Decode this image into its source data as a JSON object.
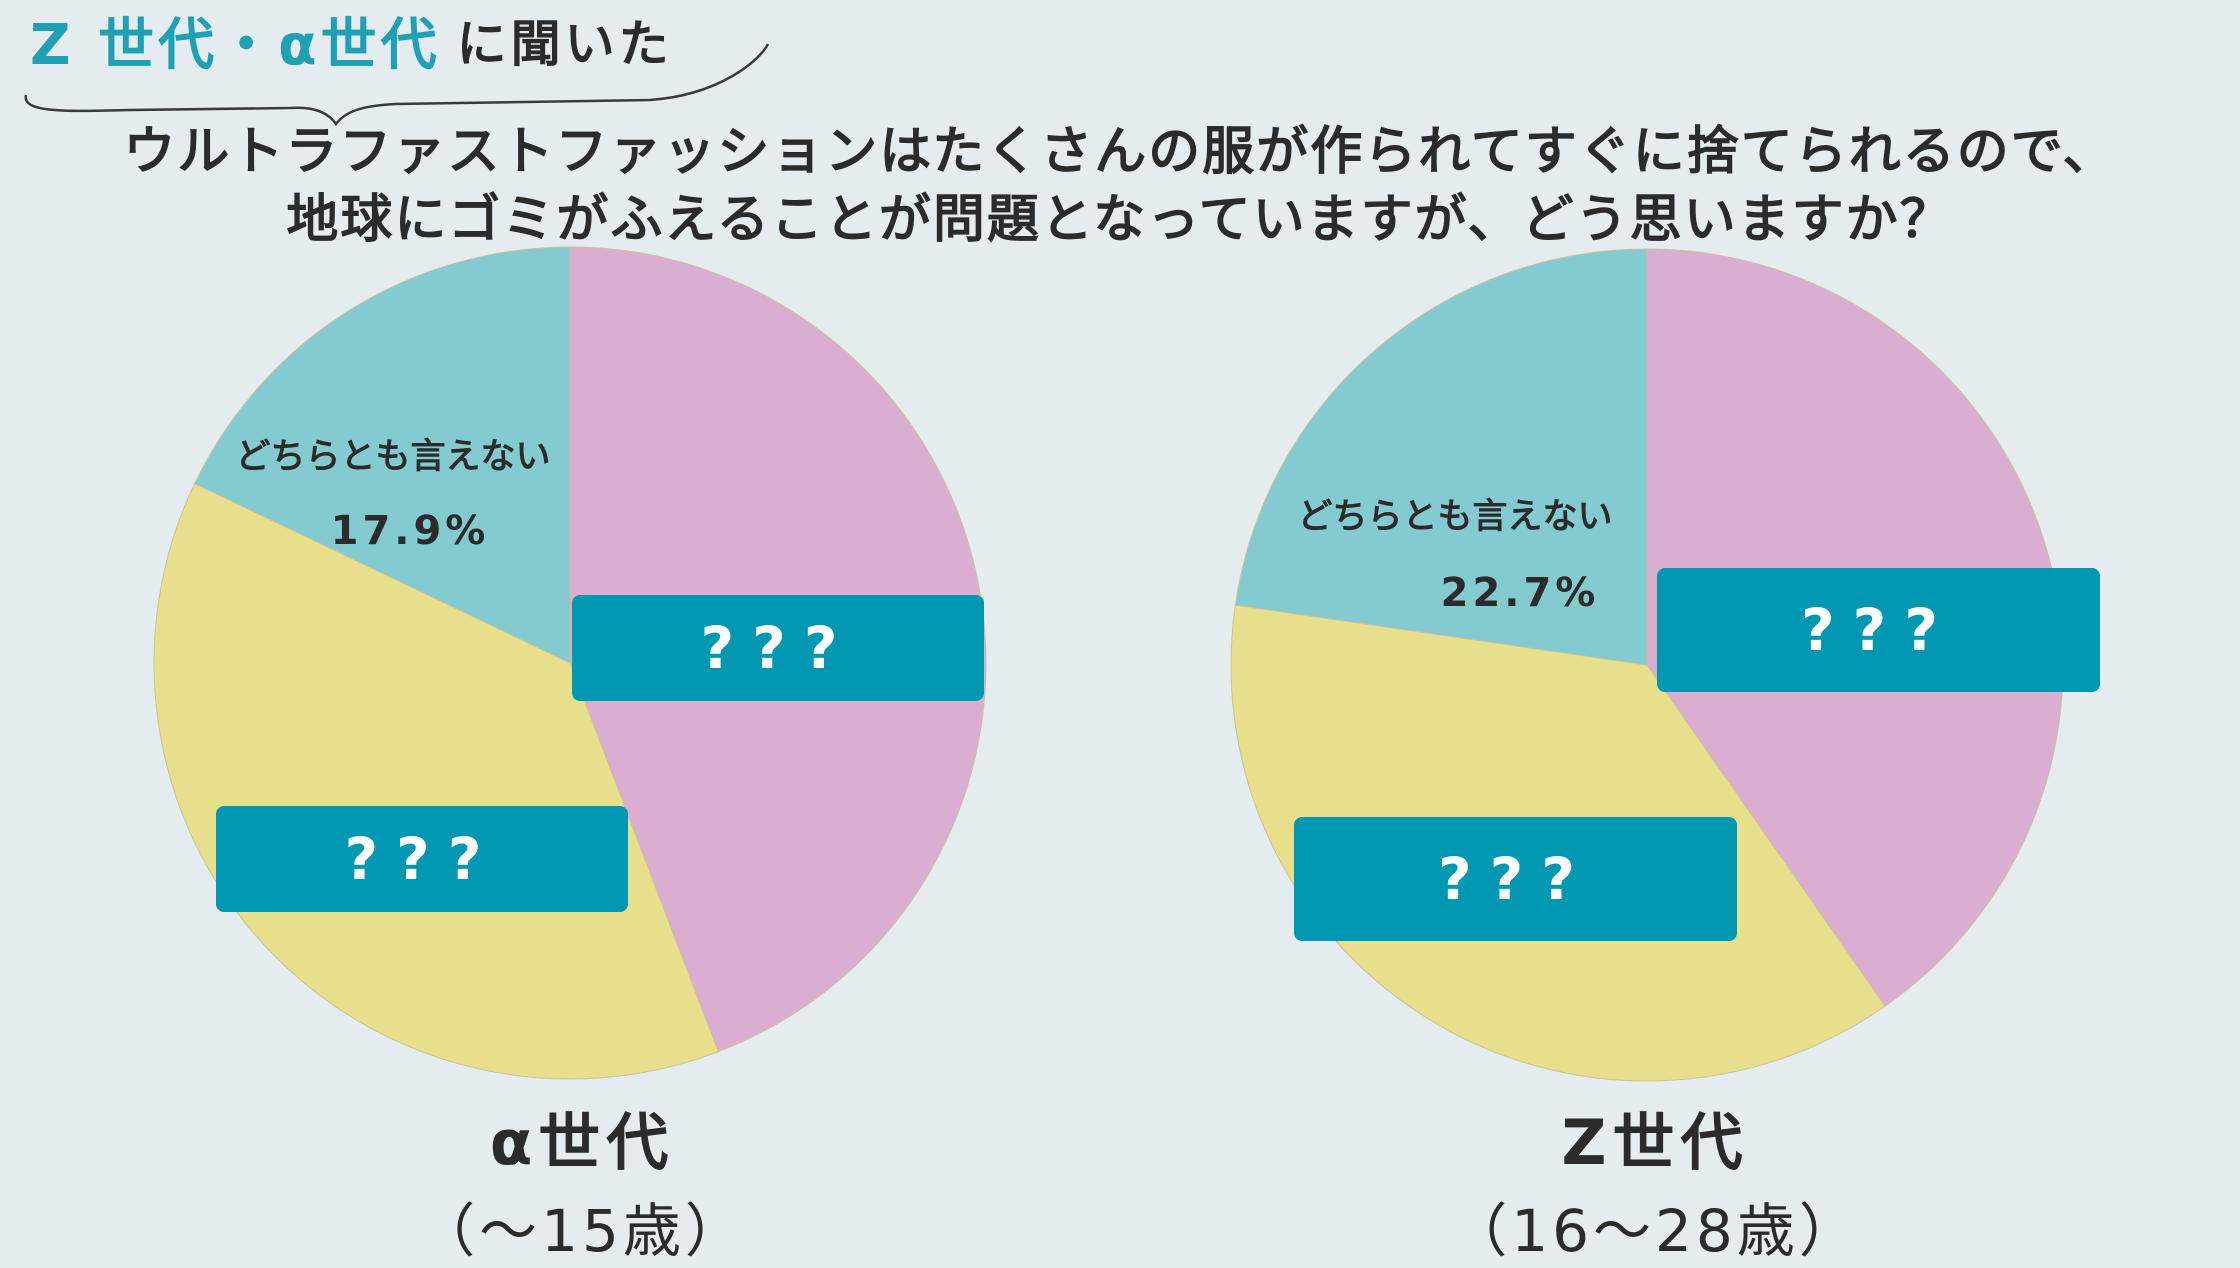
{
  "header": {
    "tag_accent": "Z 世代・α世代",
    "tag_rest": "に聞いた"
  },
  "question": {
    "line1": "ウルトラファストファッションはたくさんの服が作られてすぐに捨てられるので、",
    "line2": "地球にゴミがふえることが問題となっていますが、どう思いますか？"
  },
  "colors": {
    "background": "#e4ecef",
    "pink": "#d9aed0",
    "yellow": "#e8df8c",
    "teal_slice": "#83cbd0",
    "pill": "#0097b2",
    "accent_text": "#1fa0b4"
  },
  "chart_data": [
    {
      "type": "pie",
      "title": "α世代",
      "subtitle": "（〜15歳）",
      "slices": [
        {
          "label": "???",
          "value": 44.2,
          "color": "#d9aed0"
        },
        {
          "label": "???",
          "value": 37.9,
          "color": "#e8df8c"
        },
        {
          "label": "どちらとも言えない",
          "value": 17.9,
          "value_label": "17.9%",
          "color": "#83cbd0"
        }
      ]
    },
    {
      "type": "pie",
      "title": "Z世代",
      "subtitle": "（16〜28歳）",
      "slices": [
        {
          "label": "???",
          "value": 40.3,
          "color": "#d9aed0"
        },
        {
          "label": "???",
          "value": 37.0,
          "color": "#e8df8c"
        },
        {
          "label": "どちらとも言えない",
          "value": 22.7,
          "value_label": "22.7%",
          "color": "#83cbd0"
        }
      ]
    }
  ]
}
